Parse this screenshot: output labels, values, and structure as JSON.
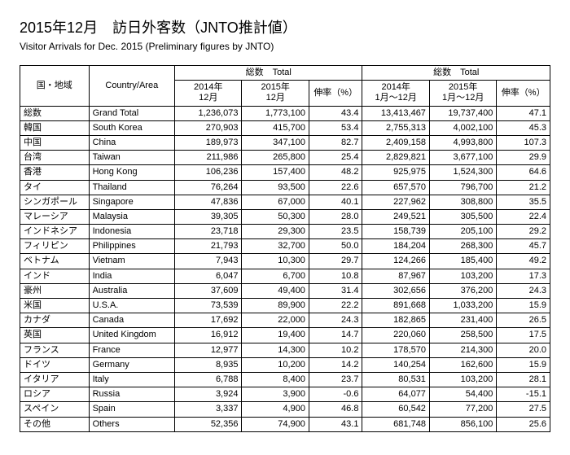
{
  "title_ja": "2015年12月　訪日外客数（JNTO推計値）",
  "title_en": "Visitor Arrivals for Dec. 2015 (Preliminary figures by JNTO)",
  "headers": {
    "country_ja": "国・地域",
    "country_en": "Country/Area",
    "total_label": "総数　Total",
    "dec2014": "2014年\n12月",
    "dec2015": "2015年\n12月",
    "growth": "伸率（%）",
    "ytd2014": "2014年\n1月～12月",
    "ytd2015": "2015年\n1月～12月"
  },
  "rows": [
    {
      "ja": "総数",
      "en": "Grand Total",
      "d14": "1,236,073",
      "d15": "1,773,100",
      "dg": "43.4",
      "y14": "13,413,467",
      "y15": "19,737,400",
      "yg": "47.1"
    },
    {
      "ja": "韓国",
      "en": "South Korea",
      "d14": "270,903",
      "d15": "415,700",
      "dg": "53.4",
      "y14": "2,755,313",
      "y15": "4,002,100",
      "yg": "45.3"
    },
    {
      "ja": "中国",
      "en": "China",
      "d14": "189,973",
      "d15": "347,100",
      "dg": "82.7",
      "y14": "2,409,158",
      "y15": "4,993,800",
      "yg": "107.3"
    },
    {
      "ja": "台湾",
      "en": "Taiwan",
      "d14": "211,986",
      "d15": "265,800",
      "dg": "25.4",
      "y14": "2,829,821",
      "y15": "3,677,100",
      "yg": "29.9"
    },
    {
      "ja": "香港",
      "en": "Hong Kong",
      "d14": "106,236",
      "d15": "157,400",
      "dg": "48.2",
      "y14": "925,975",
      "y15": "1,524,300",
      "yg": "64.6"
    },
    {
      "ja": "タイ",
      "en": "Thailand",
      "d14": "76,264",
      "d15": "93,500",
      "dg": "22.6",
      "y14": "657,570",
      "y15": "796,700",
      "yg": "21.2"
    },
    {
      "ja": "シンガポール",
      "en": "Singapore",
      "d14": "47,836",
      "d15": "67,000",
      "dg": "40.1",
      "y14": "227,962",
      "y15": "308,800",
      "yg": "35.5"
    },
    {
      "ja": "マレーシア",
      "en": "Malaysia",
      "d14": "39,305",
      "d15": "50,300",
      "dg": "28.0",
      "y14": "249,521",
      "y15": "305,500",
      "yg": "22.4"
    },
    {
      "ja": "インドネシア",
      "en": "Indonesia",
      "d14": "23,718",
      "d15": "29,300",
      "dg": "23.5",
      "y14": "158,739",
      "y15": "205,100",
      "yg": "29.2"
    },
    {
      "ja": "フィリピン",
      "en": "Philippines",
      "d14": "21,793",
      "d15": "32,700",
      "dg": "50.0",
      "y14": "184,204",
      "y15": "268,300",
      "yg": "45.7"
    },
    {
      "ja": "ベトナム",
      "en": "Vietnam",
      "d14": "7,943",
      "d15": "10,300",
      "dg": "29.7",
      "y14": "124,266",
      "y15": "185,400",
      "yg": "49.2"
    },
    {
      "ja": "インド",
      "en": "India",
      "d14": "6,047",
      "d15": "6,700",
      "dg": "10.8",
      "y14": "87,967",
      "y15": "103,200",
      "yg": "17.3"
    },
    {
      "ja": "豪州",
      "en": "Australia",
      "d14": "37,609",
      "d15": "49,400",
      "dg": "31.4",
      "y14": "302,656",
      "y15": "376,200",
      "yg": "24.3"
    },
    {
      "ja": "米国",
      "en": "U.S.A.",
      "d14": "73,539",
      "d15": "89,900",
      "dg": "22.2",
      "y14": "891,668",
      "y15": "1,033,200",
      "yg": "15.9"
    },
    {
      "ja": "カナダ",
      "en": "Canada",
      "d14": "17,692",
      "d15": "22,000",
      "dg": "24.3",
      "y14": "182,865",
      "y15": "231,400",
      "yg": "26.5"
    },
    {
      "ja": "英国",
      "en": "United Kingdom",
      "d14": "16,912",
      "d15": "19,400",
      "dg": "14.7",
      "y14": "220,060",
      "y15": "258,500",
      "yg": "17.5"
    },
    {
      "ja": "フランス",
      "en": "France",
      "d14": "12,977",
      "d15": "14,300",
      "dg": "10.2",
      "y14": "178,570",
      "y15": "214,300",
      "yg": "20.0"
    },
    {
      "ja": "ドイツ",
      "en": "Germany",
      "d14": "8,935",
      "d15": "10,200",
      "dg": "14.2",
      "y14": "140,254",
      "y15": "162,600",
      "yg": "15.9"
    },
    {
      "ja": "イタリア",
      "en": "Italy",
      "d14": "6,788",
      "d15": "8,400",
      "dg": "23.7",
      "y14": "80,531",
      "y15": "103,200",
      "yg": "28.1"
    },
    {
      "ja": "ロシア",
      "en": "Russia",
      "d14": "3,924",
      "d15": "3,900",
      "dg": "-0.6",
      "y14": "64,077",
      "y15": "54,400",
      "yg": "-15.1"
    },
    {
      "ja": "スペイン",
      "en": "Spain",
      "d14": "3,337",
      "d15": "4,900",
      "dg": "46.8",
      "y14": "60,542",
      "y15": "77,200",
      "yg": "27.5"
    },
    {
      "ja": "その他",
      "en": "Others",
      "d14": "52,356",
      "d15": "74,900",
      "dg": "43.1",
      "y14": "681,748",
      "y15": "856,100",
      "yg": "25.6"
    }
  ]
}
